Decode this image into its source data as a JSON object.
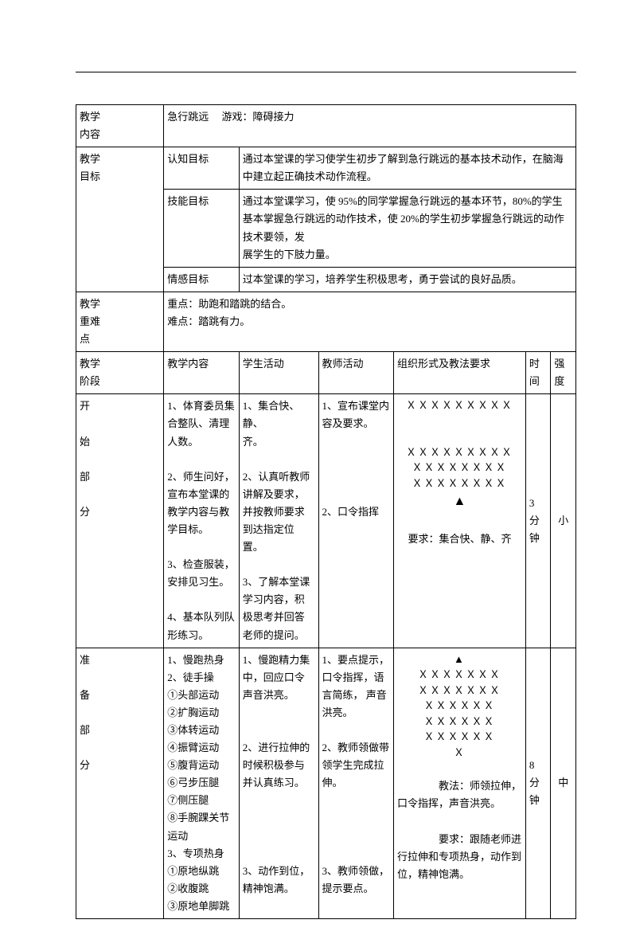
{
  "row_content": {
    "label": "教学<br>内容",
    "value": "急行跳远　  游戏：障碍接力"
  },
  "row_goals": {
    "label": "教学<br>目标",
    "items": [
      {
        "k": "认知目标",
        "v": "通过本堂课的学习使学生初步了解到急行跳远的基本技术动作，在脑海中建立起正确技术动作流程。"
      },
      {
        "k": "技能目标",
        "v": "通过本堂课学习，使 95%的同学掌握急行跳远的基本环节，80%的学生基本掌握急行跳远的动作技术，使 20%的学生初步掌握急行跳远的动作技术要领，发<br>展学生的下肢力量。"
      },
      {
        "k": "情感目标",
        "v": "过本堂课的学习，培养学生积极思考，勇于尝试的良好品质。"
      }
    ]
  },
  "row_diff": {
    "label": "教学<br>重难<br>点",
    "value": "重点：助跑和踏跳的结合。<br>难点：踏跳有力。"
  },
  "headers": {
    "c1": "教学<br>阶段",
    "c2": "教学内容",
    "c3": "学生活动",
    "c4": "教师活动",
    "c5": "组织形式及教法要求",
    "c6": "时<br>间",
    "c7": "强<br>度"
  },
  "start": {
    "label": "开<br><br>始<br><br>部<br><br>分",
    "content": "1、体育委员集合整队、清理<br>人数。<br><br>2、师生问好，宣布本堂课的教学内容与教学目标。<br><br>3、检查服装，安排见习生。<br><br>4、基本队列队形练习。",
    "student": "1、集合快、静、<br>齐。<br><br>2、认真听教师讲解及要求，并按教师要求到达指定位置。<br><br>3、了解本堂课学习内容，积极思考并回答老师的提问。",
    "teacher": "1、宣布课堂内容及要求。<br><br><br><br><br>2、口令指挥",
    "formation_lines": [
      "ＸＸＸＸＸＸＸＸＸ",
      "",
      "ＸＸＸＸＸＸＸＸＸ",
      "ＸＸＸＸＸＸＸＸ",
      "ＸＸＸＸＸＸＸＸ"
    ],
    "triangle": "▲",
    "req": "要求：集合快、静、齐",
    "time": "3<br>分<br>钟",
    "intensity": "小"
  },
  "prep": {
    "label": "准<br><br>备<br><br>部<br><br>分",
    "content": "1、慢跑热身<br>2、徒手操<br>①头部运动<br>②扩胸运动<br>③体转运动<br>④振臂运动<br>⑤腹背运动<br>⑥弓步压腿<br>⑦侧压腿<br>⑧手腕踝关节运动<br>3、专项热身<br>①原地纵跳<br>②收腹跳<br>③原地单脚跳",
    "student": "1、慢跑精力集中，回应口令声音洪亮。<br><br><br>2、进行拉伸的时候积极参与并认真练习。<br><br><br><br><br>3、动作到位，精神饱满。",
    "teacher": "1、要点提示，口令指挥，语言简练， 声音洪亮。<br><br>2、教师领做带领学生完成拉伸。<br><br><br><br><br>3、教师领做，提示要点。",
    "formation_lines": [
      "▲",
      "ＸＸＸＸＸＸＸ",
      "ＸＸＸＸＸＸＸ",
      "ＸＸＸＸＸＸ",
      "ＸＸＸＸＸＸ",
      "ＸＸＸＸＸＸ",
      "Ｘ"
    ],
    "method": "　　教法：师领拉伸，口令指挥，声音洪亮。",
    "req": "　　要求：跟随老师进行拉伸和专项热身，动作到位，精神饱满。",
    "time": "8<br>分<br>钟",
    "intensity": "中"
  }
}
